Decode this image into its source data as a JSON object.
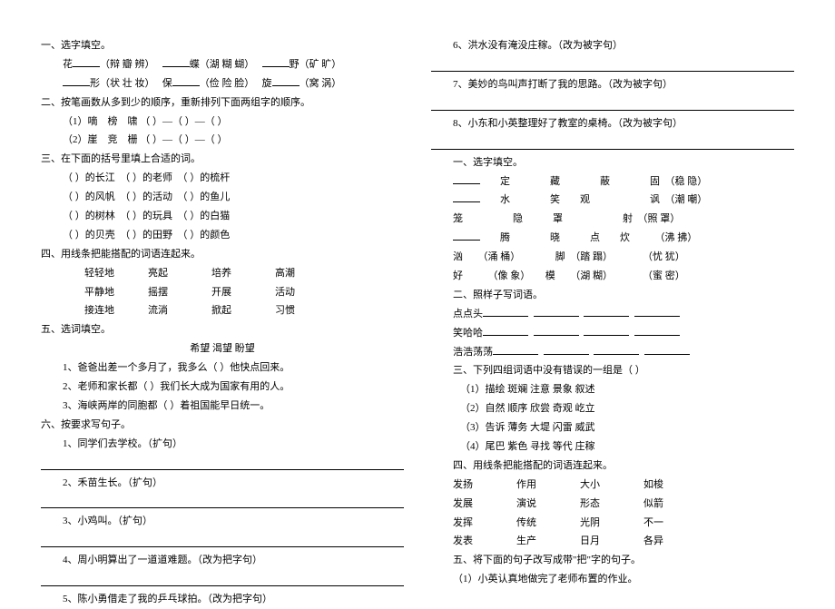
{
  "left": {
    "s1_title": "一、选字填空。",
    "s1_l1_a": "花",
    "s1_l1_a_opts": "（辩 瓣 辨）",
    "s1_l1_b": "蝶",
    "s1_l1_b_opts": "（湖 糊 蝴）",
    "s1_l1_c": "野",
    "s1_l1_c_opts": "（矿 旷）",
    "s1_l2_a": "形",
    "s1_l2_a_opts": "（状 壮 妆）",
    "s1_l2_b": "保",
    "s1_l2_b_opts": "（俭 险 脸）",
    "s1_l2_c": "旋",
    "s1_l2_c_opts": "（窝 涡）",
    "s2_title": "二、按笔画数从多到少的顺序，重新排列下面两组字的顺序。",
    "s2_l1": "（1）嘀　榜　啸    （    ）—（    ）—（    ）",
    "s2_l2": "（2）崖　竞　栅    （    ）—（    ）—（    ）",
    "s3_title": "三、在下面的括号里填上合适的词。",
    "s3_rows": [
      [
        "（          ）的长江",
        "（          ）的老师",
        "（          ）的梳杆"
      ],
      [
        "（          ）的风帆",
        "（          ）的活动",
        "（          ）的鱼儿"
      ],
      [
        "（          ）的树林",
        "（          ）的玩具",
        "（          ）的白猫"
      ],
      [
        "（          ）的贝壳",
        "（          ）的田野",
        "（          ）的颜色"
      ]
    ],
    "s4_title": "四、用线条把能搭配的词语连起来。",
    "s4_rows": [
      [
        "轻轻地",
        "亮起",
        "培养",
        "高潮"
      ],
      [
        "平静地",
        "摇摆",
        "开展",
        "活动"
      ],
      [
        "接连地",
        "流淌",
        "掀起",
        "习惯"
      ]
    ],
    "s5_title": "五、选词填空。",
    "s5_words": "希望    渴望    盼望",
    "s5_q1": "1、爸爸出差一个多月了，我多么（          ）他快点回来。",
    "s5_q2": "2、老师和家长都（          ）我们长大成为国家有用的人。",
    "s5_q3": "3、海峡两岸的同胞都（          ）着祖国能早日统一。",
    "s6_title": "六、按要求写句子。",
    "s6_q1": "1、同学们去学校。（扩句）",
    "s6_q2": "2、禾苗生长。（扩句）",
    "s6_q3": "3、小鸡叫。（扩句）",
    "s6_q4": "4、周小明算出了一道道难题。（改为把字句）",
    "s6_q5": "5、陈小勇借走了我的乒乓球拍。（改为把字句）"
  },
  "right": {
    "q6": "6、洪水没有淹没庄稼。（改为被字句）",
    "q7": "7、美妙的鸟叫声打断了我的思路。（改为被字句）",
    "q8": "8、小东和小英整理好了教室的桌椅。（改为被字句）",
    "s1_title": "一、选字填空。",
    "s1_l1": "　　定　　　　藏　　　　蔽　　　　固　（稳 隐）",
    "s1_l2": "　　水　　　　笑　　观　　　　　　讽　（潮 嘲）",
    "s1_l3": "笼　　　　　隐　　　罩　　　　　　射　（照 罩）",
    "s1_l4": "　　腾　　　　晓　　　点　　炊　　　（沸 拂）",
    "s1_l5": "汹　　（涌 桶）　　　　脚　（踏 蹋）　　　　（忧 犹）",
    "s1_l6": "好　　　（像 象）　　模　　（湖 糊）　　　　（蜜 密）",
    "s2_title": "二、照样子写词语。",
    "s2_l1": "点点头",
    "s2_l2": "笑哈哈",
    "s2_l3": "浩浩荡荡",
    "s3_title": "三、下列四组词语中没有错误的一组是（    ）",
    "s3_rows": [
      "（1）描绘    斑斓    注意    景象    叙述",
      "（2）自然    顺序    欣尝    奇观    屹立",
      "（3）告诉    薄务    大堤    闪雷    威武",
      "（4）尾巴    紫色    寻找    等代    庄稼"
    ],
    "s4_title": "四、用线条把能搭配的词语连起来。",
    "s4_rows": [
      [
        "发扬",
        "作用",
        "大小",
        "如梭"
      ],
      [
        "发展",
        "演说",
        "形态",
        "似箭"
      ],
      [
        "发挥",
        "传统",
        "光阴",
        "不一"
      ],
      [
        "发表",
        "生产",
        "日月",
        "各异"
      ]
    ],
    "s5_title": "五、将下面的句子改写成带\"把\"字的句子。",
    "s5_q1": "（1）小英认真地做完了老师布置的作业。"
  }
}
